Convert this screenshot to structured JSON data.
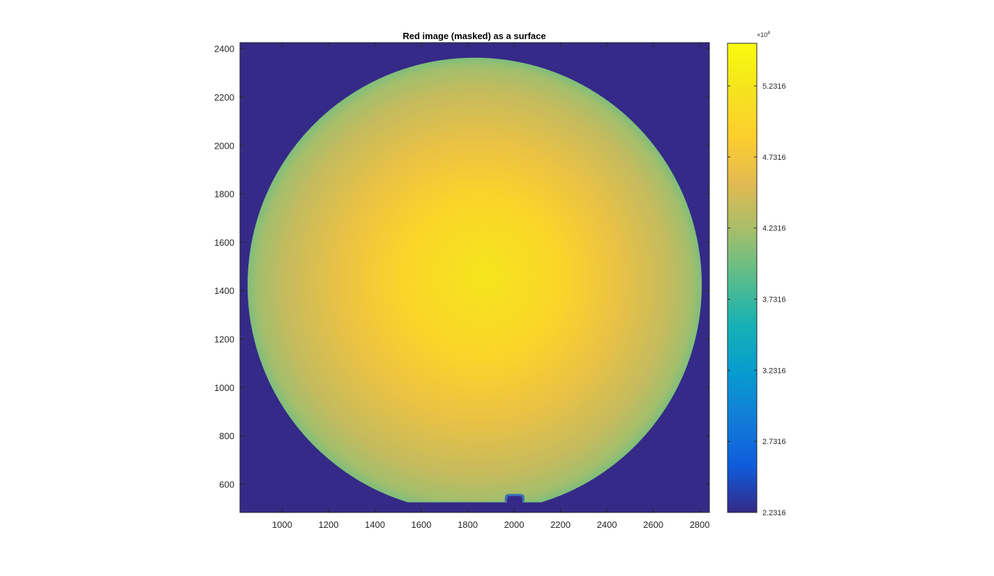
{
  "chart_data": {
    "type": "heatmap",
    "title": "Red image (masked) as a surface",
    "xlabel": "",
    "ylabel": "",
    "xlim": [
      818,
      2842
    ],
    "ylim": [
      483,
      2425
    ],
    "x_ticks": [
      1000,
      1200,
      1400,
      1600,
      1800,
      2000,
      2200,
      2400,
      2600,
      2800
    ],
    "x_tick_labels": [
      "1000",
      "1200",
      "1400",
      "1600",
      "1800",
      "2000",
      "2200",
      "2400",
      "2600",
      "2800"
    ],
    "y_ticks": [
      600,
      800,
      1000,
      1200,
      1400,
      1600,
      1800,
      2000,
      2200,
      2400
    ],
    "y_tick_labels": [
      "600",
      "800",
      "1000",
      "1200",
      "1400",
      "1600",
      "1800",
      "2000",
      "2200",
      "2400"
    ],
    "colormap": "parula",
    "grid": false,
    "masked_value": 2.2316,
    "circle": {
      "center_x": 1830,
      "center_y": 1423,
      "radius": 977,
      "flat_cut_y": 527,
      "notch": {
        "x_from": 1960,
        "x_to": 2045,
        "y_top": 560
      }
    },
    "peak": {
      "x": 1880,
      "y": 1470,
      "value": 5.23
    },
    "edge_value": 4.05,
    "colorbar": {
      "min": 2.2316,
      "max": 5.5316,
      "exponent_label": "×10",
      "exponent_power": "4",
      "ticks": [
        2.2316,
        2.7316,
        3.2316,
        3.7316,
        4.2316,
        4.7316,
        5.2316
      ],
      "tick_labels": [
        "2.2316",
        "2.7316",
        "3.2316",
        "3.7316",
        "4.2316",
        "4.7316",
        "5.2316"
      ]
    }
  }
}
